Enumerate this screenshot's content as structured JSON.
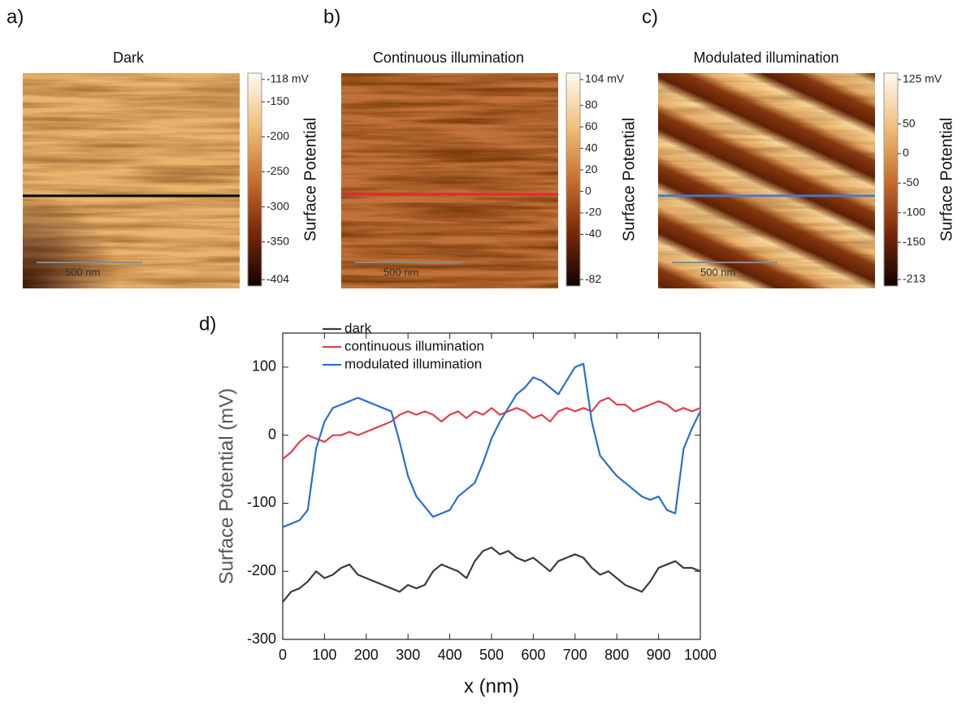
{
  "chart_data": [
    {
      "type": "image",
      "panel": "a)",
      "title": "Dark",
      "scale_bar": "500 nm",
      "colorbar_label": "Surface Potential",
      "clim": [
        -413,
        -109
      ],
      "cticks": [
        {
          "value": -118,
          "label": "-118 mV"
        },
        -150,
        -200,
        -250,
        -300,
        -350,
        -404
      ],
      "profile_color": "#000000"
    },
    {
      "type": "image",
      "panel": "b)",
      "title": "Continuous illumination",
      "scale_bar": "500 nm",
      "colorbar_label": "Surface Potential",
      "clim": [
        -88,
        110
      ],
      "cticks": [
        {
          "value": 104,
          "label": "104 mV"
        },
        80,
        60,
        40,
        20,
        0,
        -20,
        -40,
        -82
      ],
      "profile_color": "#e8282a"
    },
    {
      "type": "image",
      "panel": "c)",
      "title": "Modulated illumination",
      "scale_bar": "500 nm",
      "colorbar_label": "Surface Potential",
      "clim": [
        -224,
        136
      ],
      "cticks": [
        {
          "value": 125,
          "label": "125 mV"
        },
        50,
        0,
        -50,
        -100,
        -150,
        -213
      ],
      "profile_color": "#4a78c8"
    },
    {
      "type": "line",
      "panel": "d)",
      "xlabel": "x (nm)",
      "ylabel": "Surface Potential (mV)",
      "xlim": [
        0,
        1000
      ],
      "ylim": [
        -300,
        150
      ],
      "xticks": [
        0,
        100,
        200,
        300,
        400,
        500,
        600,
        700,
        800,
        900,
        1000
      ],
      "yticks": [
        -300,
        -200,
        -100,
        0,
        100
      ],
      "x": [
        0,
        20,
        40,
        60,
        80,
        100,
        120,
        140,
        160,
        180,
        200,
        220,
        240,
        260,
        280,
        300,
        320,
        340,
        360,
        380,
        400,
        420,
        440,
        460,
        480,
        500,
        520,
        540,
        560,
        580,
        600,
        620,
        640,
        660,
        680,
        700,
        720,
        740,
        760,
        780,
        800,
        820,
        840,
        860,
        880,
        900,
        920,
        940,
        960,
        980,
        1000
      ],
      "series": [
        {
          "name": "dark",
          "color": "#3c3c3c",
          "values": [
            -245,
            -230,
            -225,
            -215,
            -200,
            -210,
            -205,
            -195,
            -190,
            -205,
            -210,
            -215,
            -220,
            -225,
            -230,
            -220,
            -225,
            -220,
            -200,
            -190,
            -195,
            -200,
            -210,
            -185,
            -170,
            -165,
            -175,
            -170,
            -180,
            -185,
            -180,
            -190,
            -200,
            -185,
            -180,
            -175,
            -180,
            -195,
            -205,
            -200,
            -210,
            -220,
            -225,
            -230,
            -215,
            -195,
            -190,
            -185,
            -195,
            -195,
            -200
          ]
        },
        {
          "name": "continuous illumination",
          "color": "#e04050",
          "values": [
            -35,
            -25,
            -10,
            0,
            -5,
            -10,
            0,
            0,
            5,
            0,
            5,
            10,
            15,
            20,
            30,
            35,
            30,
            35,
            30,
            20,
            30,
            35,
            25,
            35,
            30,
            40,
            30,
            35,
            40,
            35,
            25,
            30,
            20,
            35,
            40,
            35,
            40,
            35,
            50,
            55,
            45,
            45,
            35,
            40,
            45,
            50,
            45,
            35,
            40,
            35,
            40
          ]
        },
        {
          "name": "modulated illumination",
          "color": "#2a6fd0",
          "values": [
            -135,
            -130,
            -125,
            -110,
            -20,
            20,
            40,
            45,
            50,
            55,
            50,
            45,
            40,
            35,
            -10,
            -60,
            -90,
            -105,
            -120,
            -115,
            -110,
            -90,
            -80,
            -70,
            -40,
            -5,
            20,
            40,
            60,
            70,
            85,
            80,
            70,
            60,
            80,
            100,
            105,
            20,
            -30,
            -45,
            -60,
            -70,
            -80,
            -90,
            -95,
            -90,
            -110,
            -115,
            -20,
            10,
            35
          ]
        }
      ]
    }
  ]
}
